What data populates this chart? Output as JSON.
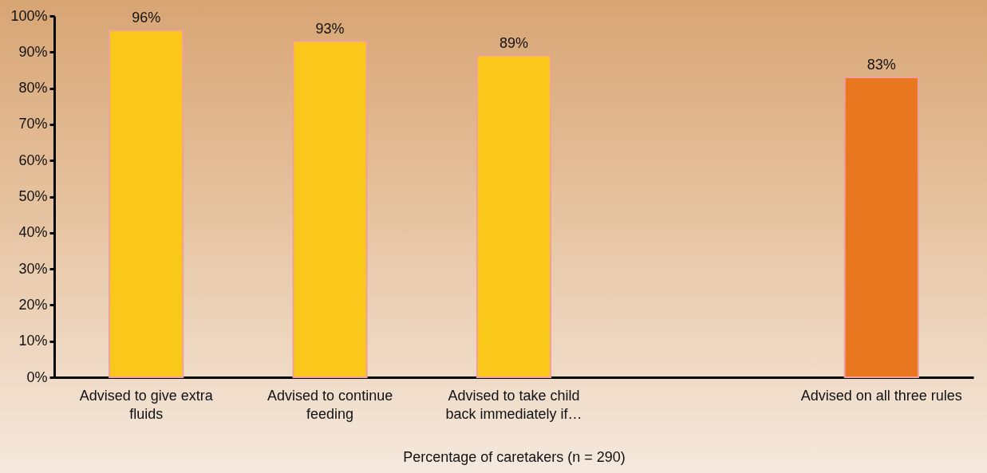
{
  "chart_data": {
    "type": "bar",
    "categories": [
      "Advised to give extra fluids",
      "Advised to continue feeding",
      "Advised to take child back immediately if…",
      null,
      "Advised on all three rules"
    ],
    "values": [
      96,
      93,
      89,
      null,
      83
    ],
    "value_labels": [
      "96%",
      "93%",
      "89%",
      null,
      "83%"
    ],
    "colors": [
      "#f9c81a",
      "#f9c81a",
      "#f9c81a",
      null,
      "#e8771f"
    ],
    "xlabel": "Percentage of caretakers (n = 290)",
    "ylim": [
      0,
      100
    ],
    "yticks": [
      {
        "value": 0,
        "label": "0%"
      },
      {
        "value": 10,
        "label": "10%"
      },
      {
        "value": 20,
        "label": "20%"
      },
      {
        "value": 30,
        "label": "30%"
      },
      {
        "value": 40,
        "label": "40%"
      },
      {
        "value": 50,
        "label": "50%"
      },
      {
        "value": 60,
        "label": "60%"
      },
      {
        "value": 70,
        "label": "70%"
      },
      {
        "value": 80,
        "label": "80%"
      },
      {
        "value": 90,
        "label": "90%"
      },
      {
        "value": 100,
        "label": "100%"
      }
    ]
  }
}
